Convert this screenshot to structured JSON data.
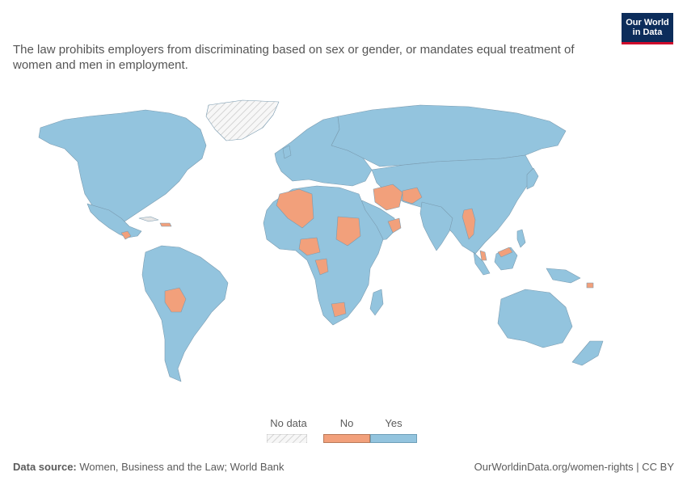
{
  "subtitle": "The law prohibits employers from discriminating based on sex or gender, or mandates equal treatment of women and men in employment.",
  "logo": {
    "line1": "Our World",
    "line2": "in Data"
  },
  "legend": [
    {
      "label": "No data",
      "color": "hatch"
    },
    {
      "label": "No",
      "color": "#f2a07b"
    },
    {
      "label": "Yes",
      "color": "#93c4de"
    }
  ],
  "colors": {
    "yes": "#93c4de",
    "no": "#f2a07b",
    "nodata": "#e6e6e6",
    "border": "#7a9bb0"
  },
  "regions_no": [
    "Guatemala",
    "Algeria",
    "Niger",
    "Nigeria",
    "Sudan",
    "Iran",
    "Afghanistan",
    "Oman",
    "Myanmar",
    "Congo",
    "Zimbabwe",
    "Bolivia",
    "Malaysia",
    "Solomon Islands"
  ],
  "footer": {
    "source_label": "Data source:",
    "source_text": "Women, Business and the Law; World Bank",
    "right": "OurWorldinData.org/women-rights | CC BY"
  }
}
